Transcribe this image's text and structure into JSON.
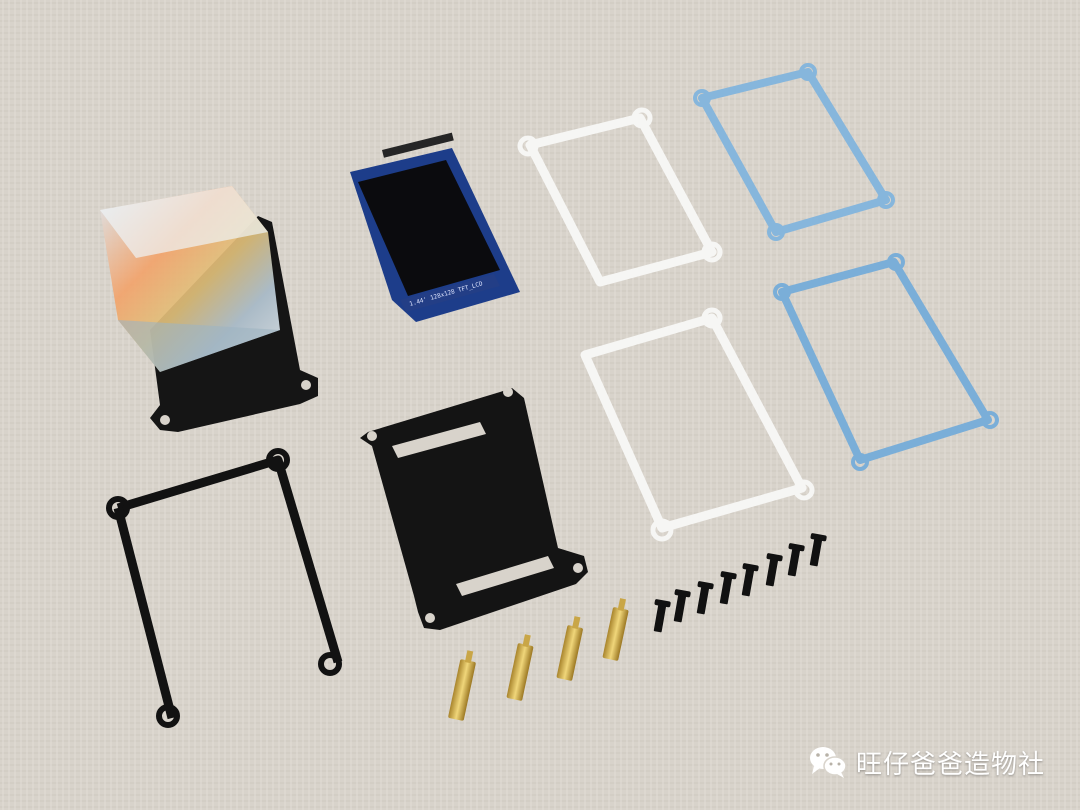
{
  "photo": {
    "lcd_silkscreen": "1.44' 128x128 TFT_LCD",
    "watermark_text": "旺仔爸爸造物社",
    "watermark_icon": "wechat-icon",
    "colors": {
      "fabric": "#d9d4cc",
      "black_acrylic": "#141414",
      "clear_acrylic": "#f4f4f2",
      "blue_edge": "#7fb0d8",
      "pcb_blue": "#1d3d8a",
      "brass": "#d8b552"
    }
  }
}
